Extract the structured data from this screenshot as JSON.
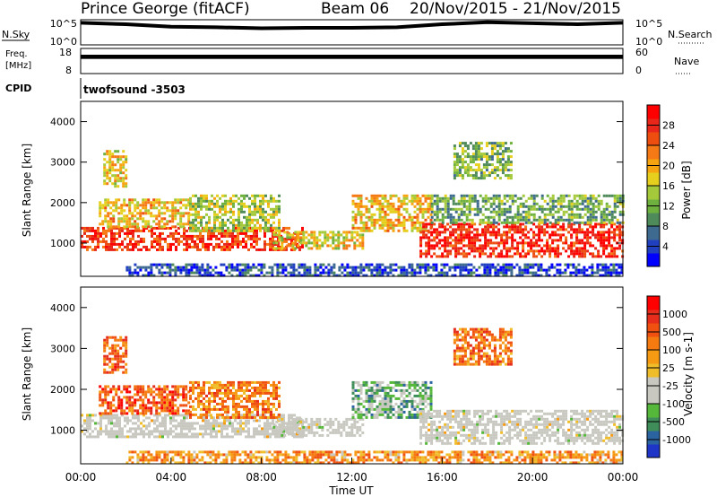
{
  "header": {
    "station": "Prince George (fitACF)",
    "beam": "Beam 06",
    "dates": "20/Nov/2015 - 21/Nov/2015"
  },
  "chart_data": [
    {
      "type": "line",
      "panel": "noise",
      "left_label": "N.Sky",
      "right_label": "N.Search",
      "y_ticks_left": [
        "10^5",
        "10^0"
      ],
      "y_ticks_right": [
        "10^5",
        "10^0"
      ],
      "x": [
        0,
        2,
        4,
        6,
        8,
        10,
        12,
        14,
        16,
        18,
        20,
        22,
        24
      ],
      "y_log10": [
        4.4,
        4.1,
        3.6,
        3.5,
        3.3,
        3.4,
        3.4,
        3.5,
        4.1,
        4.5,
        4.3,
        4.1,
        4.4
      ]
    },
    {
      "type": "area",
      "panel": "frequency",
      "left_label_top": "Freq.",
      "left_label_bottom": "[MHz]",
      "right_label": "Nave",
      "y_ticks_left": [
        "18",
        "8"
      ],
      "y_ticks_right": [
        "60",
        "0"
      ],
      "ylim_left": [
        8,
        18
      ],
      "ylim_right": [
        0,
        60
      ],
      "nave_range": [
        35,
        45
      ]
    },
    {
      "type": "text",
      "panel": "cpid",
      "label": "CPID",
      "value": "twofsound -3503"
    },
    {
      "type": "heatmap",
      "panel": "power",
      "ylabel": "Slant Range [km]",
      "xlim": [
        0,
        24
      ],
      "ylim": [
        180,
        4500
      ],
      "yticks": [
        "1000",
        "2000",
        "3000",
        "4000"
      ],
      "colorbar_label": "Power [dB]",
      "colorbar_ticks": [
        "4",
        "8",
        "12",
        "16",
        "20",
        "24",
        "28"
      ],
      "colors": [
        "#0000ff",
        "#2040c0",
        "#3d6a8e",
        "#4f8a5a",
        "#6fb13f",
        "#a4c93a",
        "#e6cf1d",
        "#f6a410",
        "#f57915",
        "#ee4d10",
        "#e8261a",
        "#ff0000"
      ],
      "echo_bands": [
        {
          "t": [
            0.0,
            9.8
          ],
          "r": [
            850,
            1400
          ],
          "level": 0.85
        },
        {
          "t": [
            0.8,
            4.8
          ],
          "r": [
            1400,
            2100
          ],
          "level": 0.6
        },
        {
          "t": [
            1.0,
            2.0
          ],
          "r": [
            2400,
            3300
          ],
          "level": 0.55
        },
        {
          "t": [
            4.8,
            8.8
          ],
          "r": [
            1300,
            2200
          ],
          "level": 0.45
        },
        {
          "t": [
            8.5,
            12.5
          ],
          "r": [
            900,
            1300
          ],
          "level": 0.55
        },
        {
          "t": [
            12.0,
            15.5
          ],
          "r": [
            1300,
            2200
          ],
          "level": 0.6
        },
        {
          "t": [
            15.0,
            24.0
          ],
          "r": [
            650,
            1500
          ],
          "level": 0.9
        },
        {
          "t": [
            15.5,
            24.0
          ],
          "r": [
            1500,
            2200
          ],
          "level": 0.35
        },
        {
          "t": [
            16.5,
            19.0
          ],
          "r": [
            2600,
            3500
          ],
          "level": 0.4
        },
        {
          "t": [
            2.0,
            24.0
          ],
          "r": [
            180,
            500
          ],
          "level": 0.15
        }
      ]
    },
    {
      "type": "heatmap",
      "panel": "velocity",
      "ylabel": "Slant Range [km]",
      "xlim": [
        0,
        24
      ],
      "ylim": [
        180,
        4500
      ],
      "yticks": [
        "1000",
        "2000",
        "3000",
        "4000"
      ],
      "xlabel": "Time UT",
      "xticks": [
        "00:00",
        "04:00",
        "08:00",
        "12:00",
        "16:00",
        "20:00",
        "00:00"
      ],
      "colorbar_label": "Velocity [m s-1]",
      "colorbar_ticks": [
        "1000",
        "500",
        "100",
        "25",
        "-25",
        "-100",
        "-500",
        "-1000"
      ],
      "colors": [
        "#1e35c8",
        "#2a63a0",
        "#3f8e5a",
        "#55b83a",
        "#c8c8c0",
        "#c8c8c0",
        "#f0bd2a",
        "#f59a12",
        "#f57a10",
        "#f05010",
        "#e62c1a",
        "#ff0000"
      ],
      "echo_bands": [
        {
          "t": [
            0.0,
            9.8
          ],
          "r": [
            850,
            1400
          ],
          "level": 0.45,
          "ground": true
        },
        {
          "t": [
            0.8,
            4.8
          ],
          "r": [
            1400,
            2100
          ],
          "level": 0.8
        },
        {
          "t": [
            1.0,
            2.0
          ],
          "r": [
            2400,
            3300
          ],
          "level": 0.75
        },
        {
          "t": [
            4.8,
            8.8
          ],
          "r": [
            1300,
            2200
          ],
          "level": 0.7
        },
        {
          "t": [
            8.5,
            12.5
          ],
          "r": [
            900,
            1300
          ],
          "level": 0.45,
          "ground": true
        },
        {
          "t": [
            12.0,
            15.5
          ],
          "r": [
            1300,
            2200
          ],
          "level": 0.3
        },
        {
          "t": [
            15.0,
            24.0
          ],
          "r": [
            650,
            1500
          ],
          "level": 0.45,
          "ground": true
        },
        {
          "t": [
            16.5,
            19.0
          ],
          "r": [
            2600,
            3500
          ],
          "level": 0.72
        },
        {
          "t": [
            2.0,
            24.0
          ],
          "r": [
            180,
            500
          ],
          "level": 0.65
        }
      ]
    }
  ]
}
